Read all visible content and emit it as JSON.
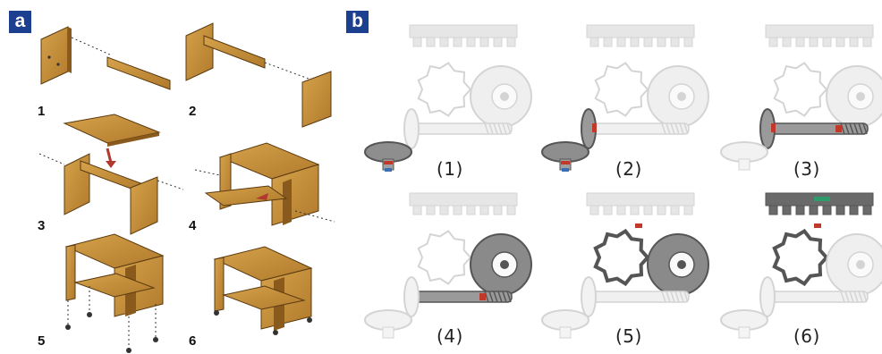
{
  "panels": {
    "a": {
      "tag": "a",
      "steps": [
        "1",
        "2",
        "3",
        "4",
        "5",
        "6"
      ]
    },
    "b": {
      "tag": "b",
      "steps": [
        "(1)",
        "(2)",
        "(3)",
        "(4)",
        "(5)",
        "(6)"
      ]
    }
  },
  "colors": {
    "tag_bg": "#1d3f8f",
    "wood": "#c9923d",
    "wood_dark": "#8a5a1c",
    "gear_light": "#d4d4d4",
    "gear_dark": "#555555",
    "highlight_red": "#c0392b",
    "highlight_green": "#2e9c6a"
  }
}
